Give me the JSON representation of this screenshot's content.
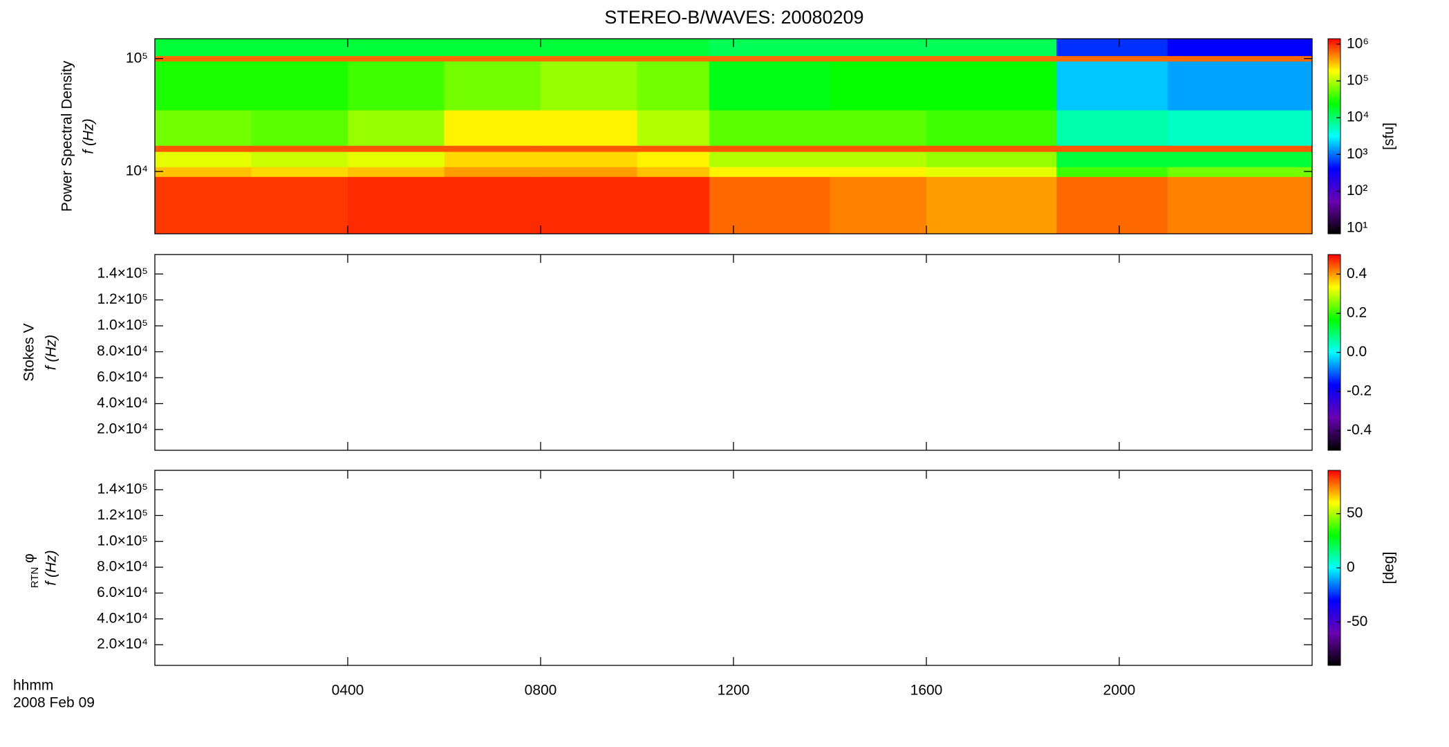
{
  "chart_data": [
    {
      "type": "spectrogram",
      "title": "STEREO-B/WAVES: 20080209",
      "y_label": "Power Spectral Density",
      "y_label2": "f (Hz)",
      "y_log": true,
      "ylim": [
        2800,
        150000
      ],
      "yticks": [
        {
          "value": 10000,
          "label": "10⁴"
        },
        {
          "value": 100000,
          "label": "10⁵"
        }
      ],
      "time_edges": [
        0,
        2,
        4,
        6,
        8,
        10,
        11.5,
        14,
        16,
        18.7,
        21,
        24
      ],
      "freq_edges": [
        2800,
        9000,
        11000,
        15000,
        17000,
        35000,
        95000,
        106000,
        150000
      ],
      "z": [
        [
          900000,
          900000,
          1000000,
          1000000,
          1000000,
          1000000,
          600000,
          500000,
          400000,
          600000,
          500000
        ],
        [
          300000,
          250000,
          300000,
          400000,
          400000,
          300000,
          200000,
          200000,
          150000,
          40000,
          60000
        ],
        [
          150000,
          120000,
          150000,
          250000,
          250000,
          200000,
          100000,
          100000,
          80000,
          15000,
          15000
        ],
        [
          700000,
          700000,
          700000,
          700000,
          700000,
          700000,
          700000,
          700000,
          700000,
          700000,
          700000
        ],
        [
          60000,
          50000,
          80000,
          200000,
          200000,
          100000,
          50000,
          50000,
          40000,
          6000,
          5000
        ],
        [
          30000,
          30000,
          40000,
          60000,
          80000,
          60000,
          20000,
          25000,
          25000,
          2000,
          1500
        ],
        [
          600000,
          600000,
          600000,
          600000,
          600000,
          600000,
          600000,
          600000,
          600000,
          600000,
          600000
        ],
        [
          15000,
          15000,
          15000,
          15000,
          15000,
          15000,
          12000,
          12000,
          12000,
          600,
          400
        ]
      ],
      "z_log": true,
      "zlim": [
        7,
        1400000
      ],
      "zticks": [
        {
          "value": 10,
          "label": "10¹"
        },
        {
          "value": 100,
          "label": "10²"
        },
        {
          "value": 1000,
          "label": "10³"
        },
        {
          "value": 10000,
          "label": "10⁴"
        },
        {
          "value": 100000,
          "label": "10⁵"
        },
        {
          "value": 1000000,
          "label": "10⁶"
        }
      ],
      "z_label": "[sfu]",
      "colorscale": [
        "#000000",
        "#6a00b0",
        "#0000ff",
        "#00ffff",
        "#00ff00",
        "#ffff00",
        "#ff0000"
      ]
    },
    {
      "type": "spectrogram",
      "y_label": "Stokes V",
      "y_label2": "f (Hz)",
      "ylim": [
        4000,
        155000
      ],
      "yticks": [
        {
          "value": 20000,
          "label": "2.0×10⁴"
        },
        {
          "value": 40000,
          "label": "4.0×10⁴"
        },
        {
          "value": 60000,
          "label": "6.0×10⁴"
        },
        {
          "value": 80000,
          "label": "8.0×10⁴"
        },
        {
          "value": 100000,
          "label": "1.0×10⁵"
        },
        {
          "value": 120000,
          "label": "1.2×10⁵"
        },
        {
          "value": 140000,
          "label": "1.4×10⁵"
        }
      ],
      "zlim": [
        -0.5,
        0.5
      ],
      "zticks": [
        0.4,
        0.2,
        {
          "value": 0,
          "label": "0.0"
        },
        -0.2,
        -0.4
      ],
      "colorscale": [
        "#000000",
        "#6a00b0",
        "#0000ff",
        "#00ffff",
        "#00ff00",
        "#ffff00",
        "#ff0000"
      ]
    },
    {
      "type": "spectrogram",
      "y_label": "φ",
      "y_label_sub": "RTN",
      "y_label2": "f (Hz)",
      "ylim": [
        4000,
        155000
      ],
      "yticks": [
        {
          "value": 20000,
          "label": "2.0×10⁴"
        },
        {
          "value": 40000,
          "label": "4.0×10⁴"
        },
        {
          "value": 60000,
          "label": "6.0×10⁴"
        },
        {
          "value": 80000,
          "label": "8.0×10⁴"
        },
        {
          "value": 100000,
          "label": "1.0×10⁵"
        },
        {
          "value": 120000,
          "label": "1.2×10⁵"
        },
        {
          "value": 140000,
          "label": "1.4×10⁵"
        }
      ],
      "zlim": [
        -90,
        90
      ],
      "zticks": [
        50,
        0,
        -50
      ],
      "z_label": "[deg]",
      "colorscale": [
        "#000000",
        "#6a00b0",
        "#0000ff",
        "#00ffff",
        "#00ff00",
        "#ffff00",
        "#ff0000"
      ],
      "xlim": [
        0,
        24
      ],
      "xticks": [
        {
          "value": 4,
          "label": "0400"
        },
        {
          "value": 8,
          "label": "0800"
        },
        {
          "value": 12,
          "label": "1200"
        },
        {
          "value": 16,
          "label": "1600"
        },
        {
          "value": 20,
          "label": "2000"
        }
      ],
      "x_label": "hhmm",
      "date": "2008 Feb 09"
    }
  ]
}
